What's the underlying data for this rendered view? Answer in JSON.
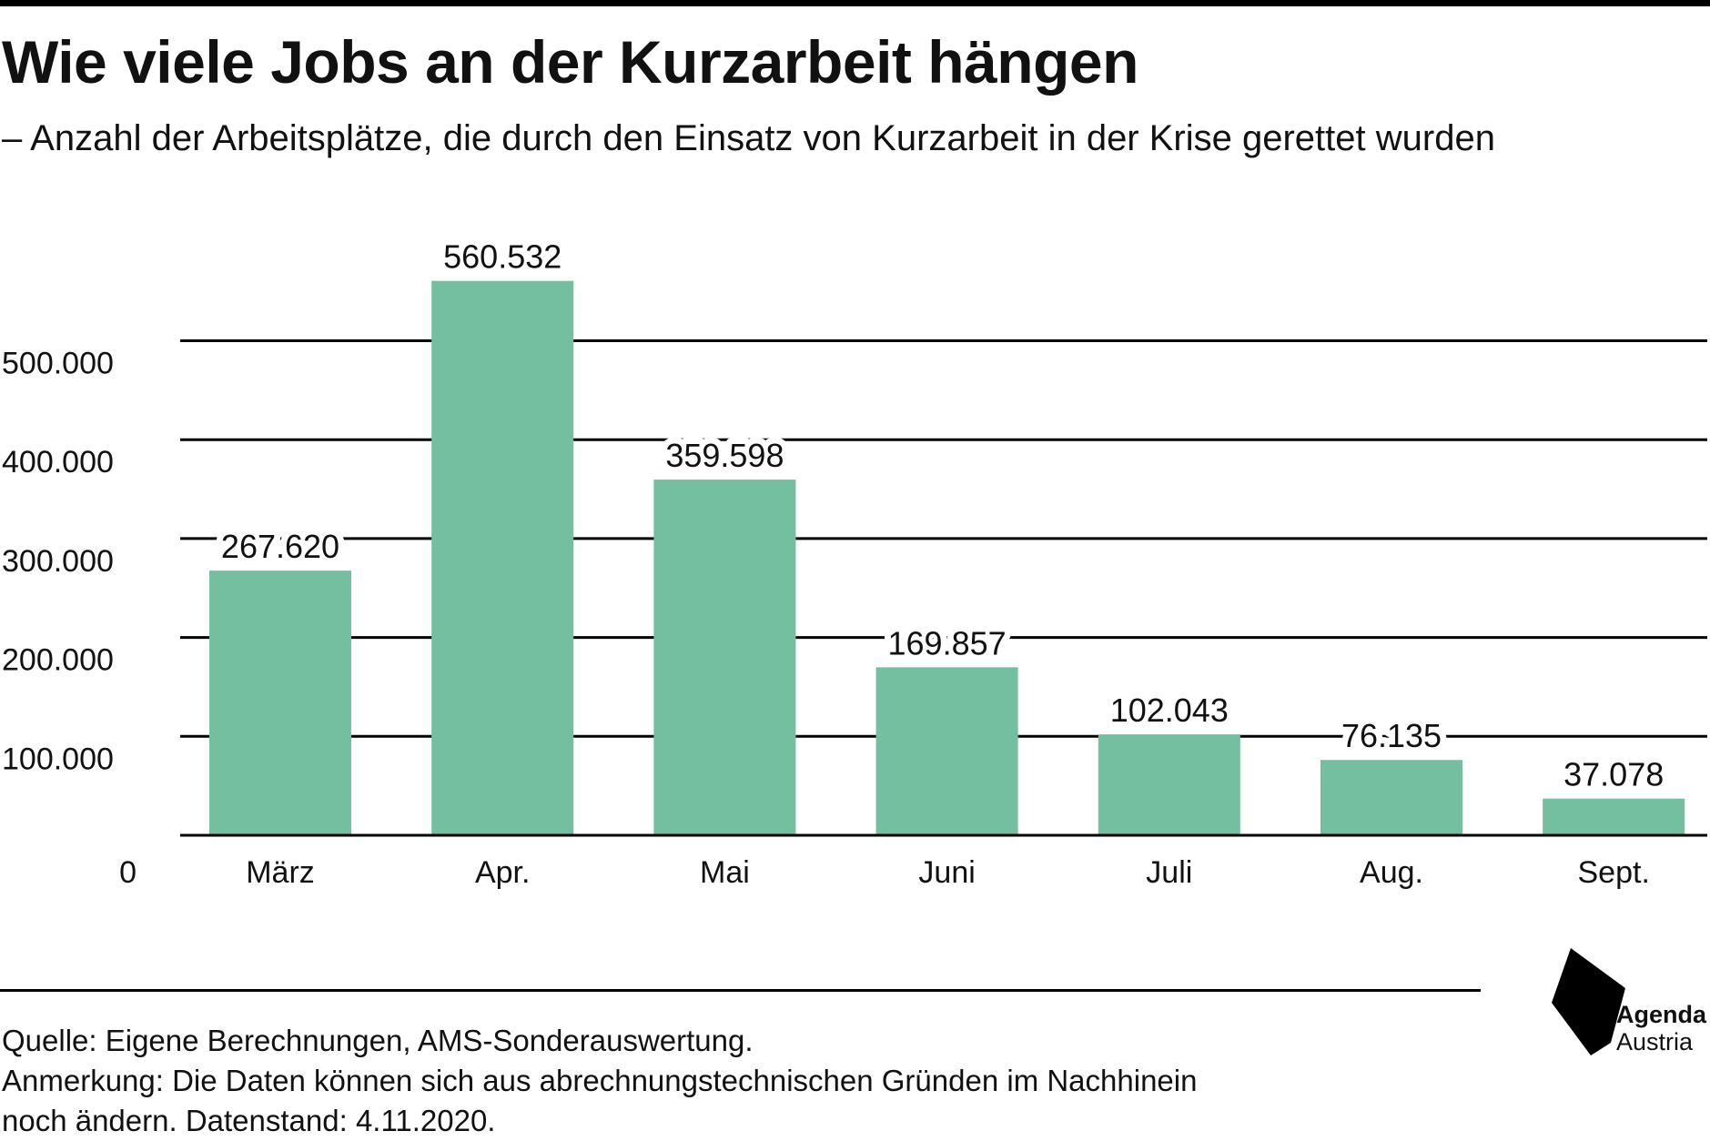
{
  "title": "Wie viele Jobs an der Kurzarbeit hängen",
  "subtitle": "– Anzahl der Arbeitsplätze, die durch den Einsatz von Kurzarbeit in der Krise gerettet wurden",
  "footer": {
    "source": "Quelle: Eigene Berechnungen, AMS-Sonderauswertung.",
    "note_line1": "Anmerkung: Die Daten können sich aus abrechnungstechnischen Gründen im Nachhinein",
    "note_line2": "noch ändern. Datenstand: 4.11.2020."
  },
  "logo": {
    "line1": "Agenda",
    "line2": "Austria"
  },
  "chart_data": {
    "type": "bar",
    "title": "Wie viele Jobs an der Kurzarbeit hängen",
    "subtitle": "– Anzahl der Arbeitsplätze, die durch den Einsatz von Kurzarbeit in der Krise gerettet wurden",
    "xlabel": "",
    "ylabel": "",
    "categories": [
      "März",
      "Apr.",
      "Mai",
      "Juni",
      "Juli",
      "Aug.",
      "Sept."
    ],
    "values": [
      267620,
      560532,
      359598,
      169857,
      102043,
      76135,
      37078
    ],
    "value_labels": [
      "267.620",
      "560.532",
      "359.598",
      "169.857",
      "102.043",
      "76.135",
      "37.078"
    ],
    "yticks": [
      0,
      100000,
      200000,
      300000,
      400000,
      500000
    ],
    "ytick_labels": [
      "0",
      "100.000",
      "200.000",
      "300.000",
      "400.000",
      "500.000"
    ],
    "ylim": [
      0,
      600000
    ],
    "grid": true,
    "legend": "none",
    "bar_color": "#73bf9f",
    "grid_color": "#000000"
  }
}
